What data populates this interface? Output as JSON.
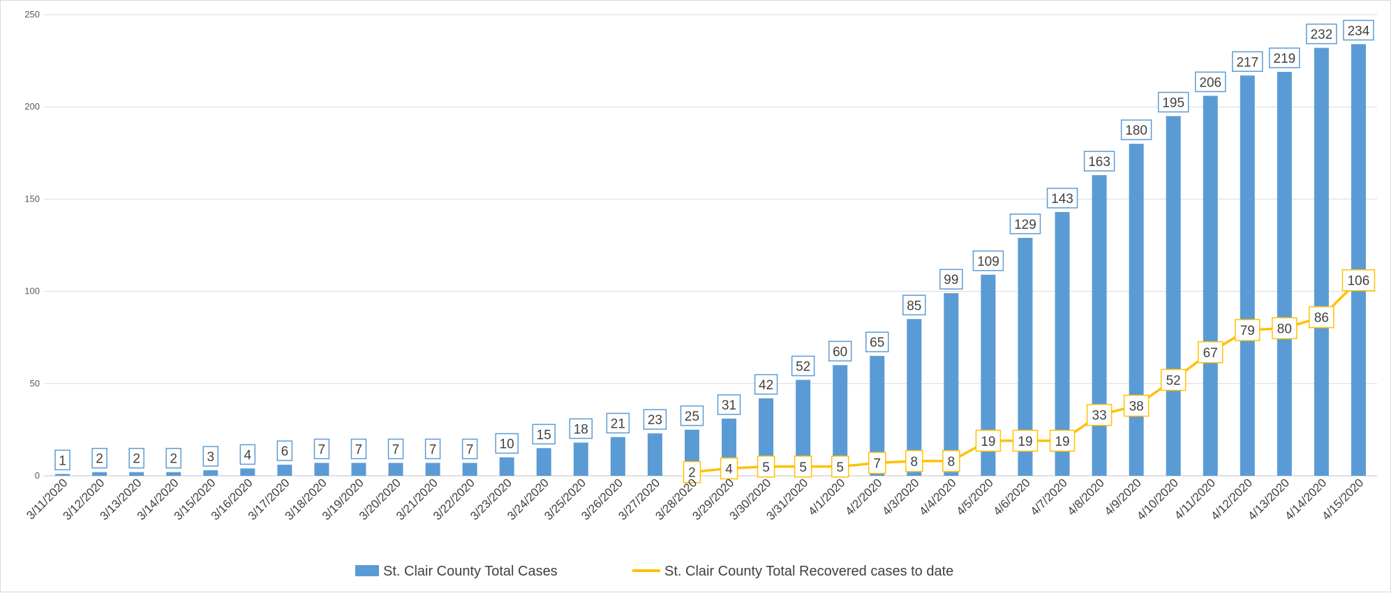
{
  "chart_data": {
    "type": "bar",
    "title": "",
    "xlabel": "",
    "ylabel": "",
    "ylim": [
      0,
      250
    ],
    "yticks": [
      0,
      50,
      100,
      150,
      200,
      250
    ],
    "grid": true,
    "legend_position": "bottom",
    "categories": [
      "3/11/2020",
      "3/12/2020",
      "3/13/2020",
      "3/14/2020",
      "3/15/2020",
      "3/16/2020",
      "3/17/2020",
      "3/18/2020",
      "3/19/2020",
      "3/20/2020",
      "3/21/2020",
      "3/22/2020",
      "3/23/2020",
      "3/24/2020",
      "3/25/2020",
      "3/26/2020",
      "3/27/2020",
      "3/28/2020",
      "3/29/2020",
      "3/30/2020",
      "3/31/2020",
      "4/1/2020",
      "4/2/2020",
      "4/3/2020",
      "4/4/2020",
      "4/5/2020",
      "4/6/2020",
      "4/7/2020",
      "4/8/2020",
      "4/9/2020",
      "4/10/2020",
      "4/11/2020",
      "4/12/2020",
      "4/13/2020",
      "4/14/2020",
      "4/15/2020"
    ],
    "series": [
      {
        "name": "St. Clair County Total Cases",
        "type": "bar",
        "color": "#5b9bd5",
        "values": [
          1,
          2,
          2,
          2,
          3,
          4,
          6,
          7,
          7,
          7,
          7,
          7,
          10,
          15,
          18,
          21,
          23,
          25,
          31,
          42,
          52,
          60,
          65,
          85,
          99,
          109,
          129,
          143,
          163,
          180,
          195,
          206,
          217,
          219,
          232,
          234
        ]
      },
      {
        "name": "St. Clair County Total Recovered cases to date",
        "type": "line",
        "color": "#ffc000",
        "values": [
          null,
          null,
          null,
          null,
          null,
          null,
          null,
          null,
          null,
          null,
          null,
          null,
          null,
          null,
          null,
          null,
          null,
          2,
          4,
          5,
          5,
          5,
          7,
          8,
          8,
          19,
          19,
          19,
          33,
          38,
          52,
          67,
          79,
          80,
          86,
          106
        ]
      }
    ]
  }
}
